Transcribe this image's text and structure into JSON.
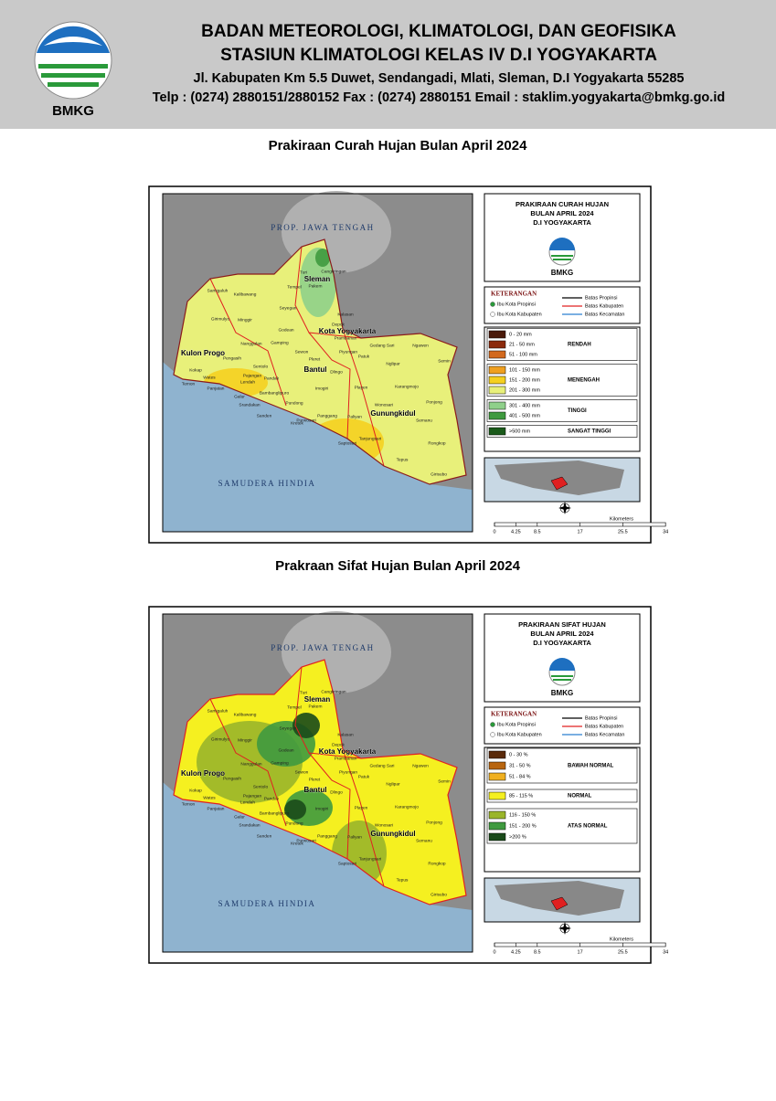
{
  "header": {
    "logo_text": "BMKG",
    "title_line1": "BADAN METEOROLOGI, KLIMATOLOGI, DAN GEOFISIKA",
    "title_line2": "STASIUN KLIMATOLOGI KELAS IV D.I YOGYAKARTA",
    "address": "Jl. Kabupaten Km 5.5 Duwet, Sendangadi, Mlati, Sleman, D.I Yogyakarta 55285",
    "contact": "Telp : (0274) 2880151/2880152 Fax : (0274) 2880151 Email : staklim.yogyakarta@bmkg.go.id"
  },
  "maps": [
    {
      "section_title": "Prakiraan Curah Hujan Bulan April 2024",
      "panel_title": [
        "PRAKIRAAN CURAH HUJAN",
        "BULAN APRIL 2024",
        "D.I YOGYAKARTA"
      ],
      "logo_text": "BMKG",
      "legend_heading": "KETERANGAN",
      "symbols": [
        "Ibu Kota Propinsi",
        "Ibu Kota Kabupaten"
      ],
      "boundaries": [
        {
          "label": "Batas Propinsi",
          "color": "#000000"
        },
        {
          "label": "Batas Kabupaten",
          "color": "#e02020"
        },
        {
          "label": "Batas Kecamatan",
          "color": "#2a7fd0"
        }
      ],
      "groups": [
        {
          "label": "RENDAH",
          "classes": [
            {
              "range": "0 - 20 mm",
              "color": "#4a1a0a"
            },
            {
              "range": "21 - 50 mm",
              "color": "#8b2a0c"
            },
            {
              "range": "51 - 100 mm",
              "color": "#d2691e"
            }
          ]
        },
        {
          "label": "MENENGAH",
          "classes": [
            {
              "range": "101 - 150 mm",
              "color": "#f0a020"
            },
            {
              "range": "151 - 200 mm",
              "color": "#f5d020"
            },
            {
              "range": "201 - 300 mm",
              "color": "#e8f07a"
            }
          ]
        },
        {
          "label": "TINGGI",
          "classes": [
            {
              "range": "301 - 400 mm",
              "color": "#8fd08a"
            },
            {
              "range": "401 - 500 mm",
              "color": "#3f9a3f"
            }
          ]
        },
        {
          "label": "SANGAT TINGGI",
          "classes": [
            {
              "range": ">500 mm",
              "color": "#1a5a1a"
            }
          ]
        }
      ],
      "province_label": "PROP. JAWA TENGAH",
      "ocean_label": "SAMUDERA HINDIA",
      "regencies": [
        "Sleman",
        "Kota Yogyakarta",
        "Kulon Progo",
        "Bantul",
        "Gunungkidul"
      ],
      "districts": [
        "Samigaluh",
        "Kalibawang",
        "Girimulyo",
        "Nanggulan",
        "Kokap",
        "Pengasih",
        "Temon",
        "Wates",
        "Panjatan",
        "Galur",
        "Lendah",
        "Sentolo",
        "Srandakan",
        "Sanden",
        "Kretek",
        "Pundong",
        "Bambanglipuro",
        "Pandak",
        "Pajangan",
        "Turi",
        "Pakem",
        "Cangkringan",
        "Tempel",
        "Seyegan",
        "Minggir",
        "Godean",
        "Gamping",
        "Depok",
        "Kalasan",
        "Prambanan",
        "Sewon",
        "Piyungan",
        "Pleret",
        "Imogiri",
        "Dlingo",
        "Patuk",
        "Gedang Sari",
        "Ngawen",
        "Semin",
        "Nglipar",
        "Playen",
        "Wonosari",
        "Karangmojo",
        "Ponjong",
        "Panggang",
        "Purwosari",
        "Paliyan",
        "Saptosari",
        "Tanjungsari",
        "Semanu",
        "Rongkop",
        "Tepus",
        "Girisubo"
      ],
      "scale_ticks": [
        "0",
        "4.25",
        "8.5",
        "17",
        "25.5",
        "34"
      ],
      "scale_unit": "Kilometers"
    },
    {
      "section_title": "Prakraan Sifat Hujan Bulan April 2024",
      "panel_title": [
        "PRAKIRAAN SIFAT HUJAN",
        "BULAN APRIL 2024",
        "D.I YOGYAKARTA"
      ],
      "logo_text": "BMKG",
      "legend_heading": "KETERANGAN",
      "symbols": [
        "Ibu Kota Propinsi",
        "Ibu Kota Kabupaten"
      ],
      "boundaries": [
        {
          "label": "Batas Propinsi",
          "color": "#000000"
        },
        {
          "label": "Batas Kabupaten",
          "color": "#e02020"
        },
        {
          "label": "Batas Kecamatan",
          "color": "#2a7fd0"
        }
      ],
      "groups": [
        {
          "label": "BAWAH NORMAL",
          "classes": [
            {
              "range": "0 - 30 %",
              "color": "#5a2a0a"
            },
            {
              "range": "31 - 50 %",
              "color": "#b8650f"
            },
            {
              "range": "51 - 84 %",
              "color": "#f0b020"
            }
          ]
        },
        {
          "label": "NORMAL",
          "classes": [
            {
              "range": "85 - 115 %",
              "color": "#f5f020"
            }
          ]
        },
        {
          "label": "ATAS NORMAL",
          "classes": [
            {
              "range": "116 - 150 %",
              "color": "#9ab52a"
            },
            {
              "range": "151 - 200 %",
              "color": "#3f9a3f"
            },
            {
              "range": ">200 %",
              "color": "#1a4a1a"
            }
          ]
        }
      ],
      "province_label": "PROP. JAWA TENGAH",
      "ocean_label": "SAMUDERA HINDIA",
      "regencies": [
        "Sleman",
        "Kota Yogyakarta",
        "Kulon Progo",
        "Bantul",
        "Gunungkidul"
      ],
      "districts": [
        "Samigaluh",
        "Kalibawang",
        "Girimulyo",
        "Nanggulan",
        "Kokap",
        "Pengasih",
        "Temon",
        "Wates",
        "Panjatan",
        "Galur",
        "Lendah",
        "Sentolo",
        "Srandakan",
        "Sanden",
        "Kretek",
        "Pundong",
        "Bambanglipuro",
        "Pandak",
        "Pajangan",
        "Turi",
        "Pakem",
        "Cangkringan",
        "Tempel",
        "Seyegan",
        "Minggir",
        "Godean",
        "Gamping",
        "Depok",
        "Kalasan",
        "Prambanan",
        "Sewon",
        "Piyungan",
        "Pleret",
        "Imogiri",
        "Dlingo",
        "Patuk",
        "Gedang Sari",
        "Ngawen",
        "Semin",
        "Nglipar",
        "Playen",
        "Wonosari",
        "Karangmojo",
        "Ponjong",
        "Panggang",
        "Purwosari",
        "Paliyan",
        "Saptosari",
        "Tanjungsari",
        "Semanu",
        "Rongkop",
        "Tepus",
        "Girisubo"
      ],
      "scale_ticks": [
        "0",
        "4.25",
        "8.5",
        "17",
        "25.5",
        "34"
      ],
      "scale_unit": "Kilometers"
    }
  ]
}
